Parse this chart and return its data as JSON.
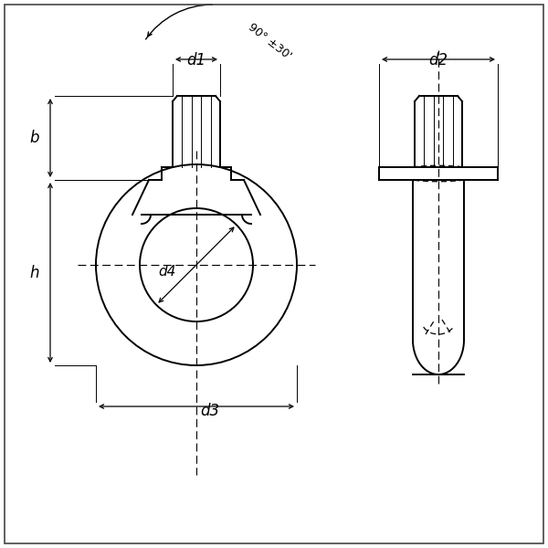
{
  "bg_color": "#ffffff",
  "line_color": "#000000",
  "lw": 1.4,
  "dlw": 0.8,
  "figsize": [
    6.0,
    6.0
  ],
  "dpi": 100,
  "labels": {
    "d1": "d1",
    "d2": "d2",
    "d3": "d3",
    "d4": "d4",
    "h": "h",
    "b": "b",
    "angle": "90° ±30'"
  }
}
